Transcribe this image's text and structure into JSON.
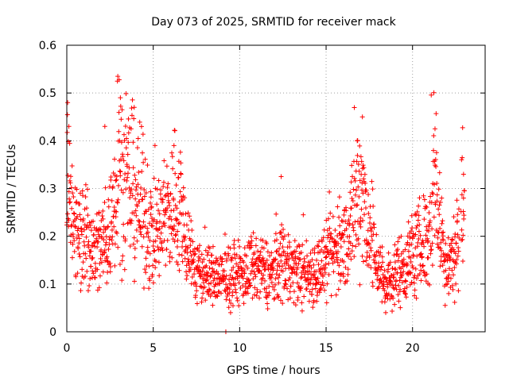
{
  "chart_data": {
    "type": "scatter",
    "title": "Day 073 of 2025, SRMTID for receiver mack",
    "xlabel": "GPS time / hours",
    "ylabel": "SRMTID / TECUs",
    "xlim": [
      0,
      24.2
    ],
    "ylim": [
      0,
      0.6
    ],
    "x_ticks": [
      0,
      5,
      10,
      15,
      20
    ],
    "x_tick_labels": [
      "0",
      "5",
      "10",
      "15",
      "20"
    ],
    "y_ticks": [
      0,
      0.1,
      0.2,
      0.3,
      0.4,
      0.5,
      0.6
    ],
    "y_tick_labels": [
      "0",
      "0.1",
      "0.2",
      "0.3",
      "0.4",
      "0.5",
      "0.6"
    ],
    "grid": true,
    "marker": "plus",
    "series": [
      {
        "name": "SRMTID",
        "color": "#ff0000",
        "profile": [
          {
            "x": 0.0,
            "y": 0.2
          },
          {
            "x": 0.05,
            "y": 0.47
          },
          {
            "x": 0.1,
            "y": 0.32
          },
          {
            "x": 0.5,
            "y": 0.21
          },
          {
            "x": 1.0,
            "y": 0.19
          },
          {
            "x": 1.5,
            "y": 0.17
          },
          {
            "x": 2.0,
            "y": 0.18
          },
          {
            "x": 2.5,
            "y": 0.21
          },
          {
            "x": 2.8,
            "y": 0.3
          },
          {
            "x": 3.0,
            "y": 0.4
          },
          {
            "x": 3.3,
            "y": 0.3
          },
          {
            "x": 3.8,
            "y": 0.3
          },
          {
            "x": 4.2,
            "y": 0.27
          },
          {
            "x": 5.0,
            "y": 0.2
          },
          {
            "x": 5.5,
            "y": 0.22
          },
          {
            "x": 6.3,
            "y": 0.28
          },
          {
            "x": 7.0,
            "y": 0.19
          },
          {
            "x": 7.5,
            "y": 0.12
          },
          {
            "x": 8.0,
            "y": 0.12
          },
          {
            "x": 9.0,
            "y": 0.11
          },
          {
            "x": 10.0,
            "y": 0.12
          },
          {
            "x": 11.0,
            "y": 0.13
          },
          {
            "x": 12.0,
            "y": 0.12
          },
          {
            "x": 12.4,
            "y": 0.16
          },
          {
            "x": 13.0,
            "y": 0.13
          },
          {
            "x": 14.0,
            "y": 0.12
          },
          {
            "x": 15.0,
            "y": 0.14
          },
          {
            "x": 15.5,
            "y": 0.17
          },
          {
            "x": 16.0,
            "y": 0.18
          },
          {
            "x": 16.5,
            "y": 0.22
          },
          {
            "x": 17.0,
            "y": 0.32
          },
          {
            "x": 17.5,
            "y": 0.2
          },
          {
            "x": 18.0,
            "y": 0.14
          },
          {
            "x": 18.5,
            "y": 0.09
          },
          {
            "x": 19.0,
            "y": 0.12
          },
          {
            "x": 19.5,
            "y": 0.14
          },
          {
            "x": 20.0,
            "y": 0.16
          },
          {
            "x": 20.5,
            "y": 0.18
          },
          {
            "x": 21.0,
            "y": 0.2
          },
          {
            "x": 21.3,
            "y": 0.35
          },
          {
            "x": 21.6,
            "y": 0.2
          },
          {
            "x": 22.0,
            "y": 0.14
          },
          {
            "x": 22.5,
            "y": 0.17
          },
          {
            "x": 22.9,
            "y": 0.27
          }
        ],
        "peaks": [
          {
            "x": 0.05,
            "y": 0.48
          },
          {
            "x": 0.12,
            "y": 0.43
          },
          {
            "x": 2.95,
            "y": 0.535
          },
          {
            "x": 3.1,
            "y": 0.49
          },
          {
            "x": 3.9,
            "y": 0.47
          },
          {
            "x": 2.2,
            "y": 0.43
          },
          {
            "x": 6.2,
            "y": 0.39
          },
          {
            "x": 17.1,
            "y": 0.45
          },
          {
            "x": 16.8,
            "y": 0.4
          },
          {
            "x": 21.3,
            "y": 0.425
          },
          {
            "x": 12.4,
            "y": 0.325
          },
          {
            "x": 22.95,
            "y": 0.33
          },
          {
            "x": 9.2,
            "y": 0.0
          }
        ],
        "x_start": 0.0,
        "x_end": 23.0,
        "point_count": 1800
      }
    ]
  }
}
